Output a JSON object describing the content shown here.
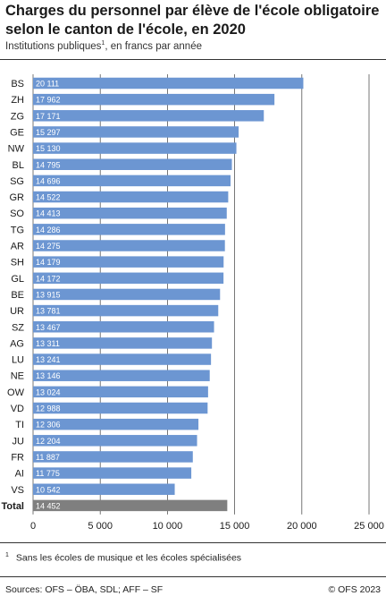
{
  "header": {
    "title_line1": "Charges du personnel par élève de l'école obligatoire",
    "title_line2": "selon le canton de l'école, en 2020",
    "subtitle_main": "Institutions publiques",
    "subtitle_sup": "1",
    "subtitle_rest": ", en francs par année"
  },
  "footnote": {
    "marker": "1",
    "text": "Sans les écoles de musique et les écoles spécialisées"
  },
  "footer": {
    "source": "Sources: OFS – ÖBA, SDL; AFF – SF",
    "copyright": "© OFS 2023"
  },
  "colors": {
    "bar": "#6c96d2",
    "total_bar": "#7f7f7f",
    "grid": "#555555",
    "text": "#1a1a1a"
  },
  "chart_data": {
    "type": "bar",
    "orientation": "horizontal",
    "categories": [
      "BS",
      "ZH",
      "ZG",
      "GE",
      "NW",
      "BL",
      "SG",
      "GR",
      "SO",
      "TG",
      "AR",
      "SH",
      "GL",
      "BE",
      "UR",
      "SZ",
      "AG",
      "LU",
      "NE",
      "OW",
      "VD",
      "TI",
      "JU",
      "FR",
      "AI",
      "VS",
      "Total"
    ],
    "values": [
      20111,
      17962,
      17171,
      15297,
      15130,
      14795,
      14696,
      14522,
      14413,
      14286,
      14275,
      14179,
      14172,
      13915,
      13781,
      13467,
      13311,
      13241,
      13146,
      13024,
      12988,
      12306,
      12204,
      11887,
      11775,
      10542,
      14452
    ],
    "value_labels": [
      "20 111",
      "17 962",
      "17 171",
      "15 297",
      "15 130",
      "14 795",
      "14 696",
      "14 522",
      "14 413",
      "14 286",
      "14 275",
      "14 179",
      "14 172",
      "13 915",
      "13 781",
      "13 467",
      "13 311",
      "13 241",
      "13 146",
      "13 024",
      "12 988",
      "12 306",
      "12 204",
      "11 887",
      "11 775",
      "10 542",
      "14 452"
    ],
    "highlight_category": "Total",
    "xlim": [
      0,
      25000
    ],
    "xticks": [
      0,
      5000,
      10000,
      15000,
      20000,
      25000
    ],
    "xtick_labels": [
      "0",
      "5 000",
      "10 000",
      "15 000",
      "20 000",
      "25 000"
    ],
    "grid": "vertical"
  }
}
